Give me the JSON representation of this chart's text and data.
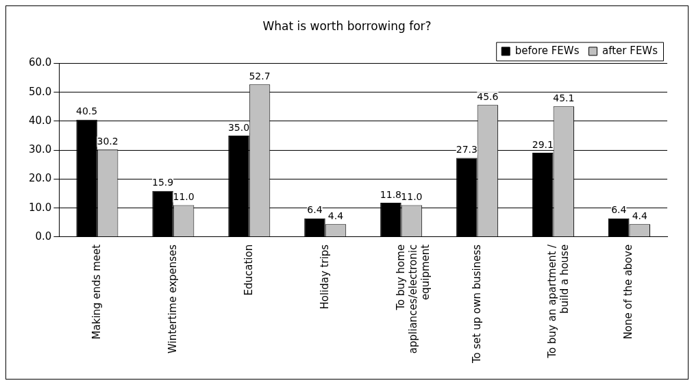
{
  "chart_data": {
    "type": "bar",
    "title": "What is worth borrowing for?",
    "categories": [
      "Making ends meet",
      "Wintertime expenses",
      "Education",
      "Holiday trips",
      "To buy home appliances/electronic equipment",
      "To set up own business",
      "To buy an apartment / build a house",
      "None of the above"
    ],
    "series": [
      {
        "name": "before FEWs",
        "color": "#000000",
        "values": [
          40.5,
          15.9,
          35.0,
          6.4,
          11.8,
          27.3,
          29.1,
          6.4
        ],
        "value_labels": [
          "40.5",
          "15.9",
          "35.0",
          "6.4",
          "11.8",
          "27.3",
          "29.1",
          "6.4"
        ]
      },
      {
        "name": "after FEWs",
        "color": "#c0c0c0",
        "values": [
          30.2,
          11.0,
          52.7,
          4.4,
          11.0,
          45.6,
          45.1,
          4.4
        ],
        "value_labels": [
          "30.2",
          "11.0",
          "52.7",
          "4.4",
          "11.0",
          "45.6",
          "45.1",
          "4.4"
        ]
      }
    ],
    "ylim": [
      0,
      60
    ],
    "yticks": [
      {
        "value": 0,
        "label": "0.0"
      },
      {
        "value": 10,
        "label": "10.0"
      },
      {
        "value": 20,
        "label": "20.0"
      },
      {
        "value": 30,
        "label": "30.0"
      },
      {
        "value": 40,
        "label": "40.0"
      },
      {
        "value": 50,
        "label": "50.0"
      },
      {
        "value": 60,
        "label": "60.0"
      }
    ],
    "grid": "y",
    "legend": "top right"
  }
}
